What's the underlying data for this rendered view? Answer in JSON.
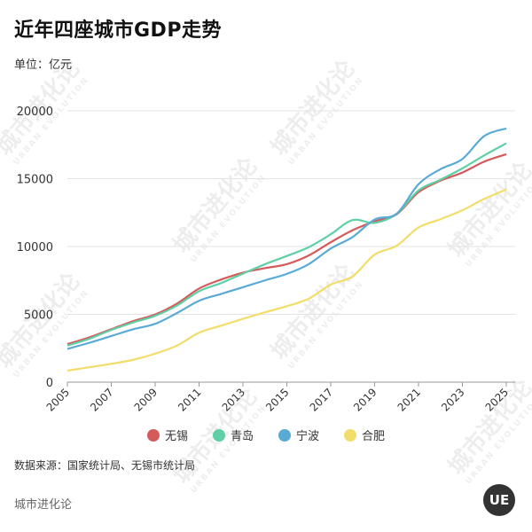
{
  "header": {
    "title": "近年四座城市GDP走势",
    "unit": "单位：亿元"
  },
  "footer": {
    "source": "数据来源：国家统计局、无锡市统计局",
    "brand": "城市进化论",
    "logo_text": "UE"
  },
  "watermark": {
    "main": "城市进化论",
    "sub": "URBAN EVOLUTION"
  },
  "chart_data": {
    "type": "line",
    "x": [
      2005,
      2006,
      2007,
      2008,
      2009,
      2010,
      2011,
      2012,
      2013,
      2014,
      2015,
      2016,
      2017,
      2018,
      2019,
      2020,
      2021,
      2022,
      2023,
      2024,
      2025
    ],
    "x_ticks": [
      "2005",
      "2007",
      "2009",
      "2011",
      "2013",
      "2015",
      "2017",
      "2019",
      "2021",
      "2023",
      "2025"
    ],
    "y_ticks": [
      "0",
      "5000",
      "10000",
      "15000",
      "20000"
    ],
    "ylim": [
      0,
      20000
    ],
    "xlim": [
      2005,
      2025
    ],
    "grid": true,
    "legend_position": "bottom",
    "series": [
      {
        "name": "无锡",
        "color": "#d45b5b",
        "values": [
          2800,
          3300,
          3900,
          4500,
          4990,
          5800,
          6900,
          7560,
          8070,
          8400,
          8700,
          9340,
          10310,
          11200,
          11850,
          12370,
          14000,
          14850,
          15450,
          16260,
          16800
        ]
      },
      {
        "name": "青岛",
        "color": "#5fd0a5",
        "values": [
          2700,
          3200,
          3850,
          4400,
          4890,
          5650,
          6700,
          7300,
          8000,
          8690,
          9300,
          9950,
          10900,
          11950,
          11740,
          12400,
          14130,
          14920,
          15760,
          16720,
          17600
        ]
      },
      {
        "name": "宁波",
        "color": "#5aaad6",
        "values": [
          2450,
          2900,
          3400,
          3900,
          4300,
          5100,
          6000,
          6500,
          7000,
          7500,
          7980,
          8700,
          9850,
          10700,
          11990,
          12410,
          14590,
          15700,
          16450,
          18150,
          18700
        ]
      },
      {
        "name": "合肥",
        "color": "#f3dd6a",
        "values": [
          850,
          1100,
          1350,
          1650,
          2100,
          2700,
          3640,
          4160,
          4670,
          5150,
          5600,
          6150,
          7190,
          7800,
          9400,
          10050,
          11400,
          12010,
          12670,
          13510,
          14200
        ]
      }
    ]
  }
}
